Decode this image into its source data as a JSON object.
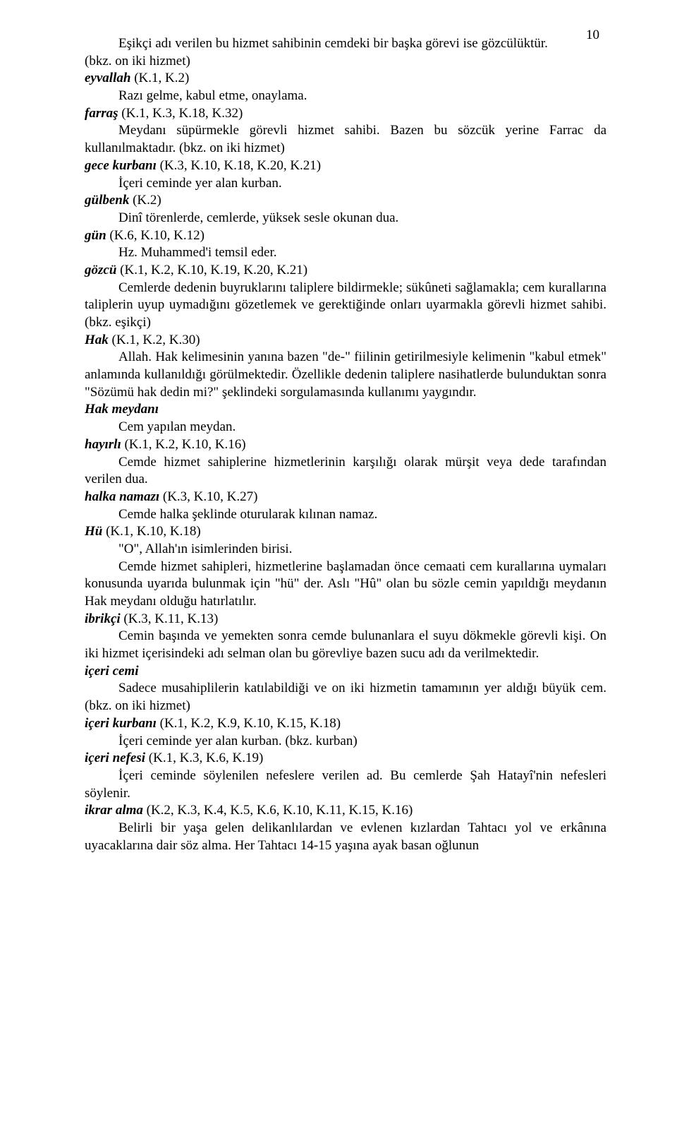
{
  "pageNumber": "10",
  "paragraphs": [
    {
      "indent": true,
      "justify": false,
      "segments": [
        {
          "text": "Eşikçi adı verilen bu hizmet sahibinin cemdeki bir başka görevi ise gözcülüktür."
        }
      ]
    },
    {
      "indent": false,
      "justify": false,
      "segments": [
        {
          "text": "(bkz. on iki hizmet)"
        }
      ]
    },
    {
      "indent": false,
      "justify": false,
      "segments": [
        {
          "text": " "
        }
      ]
    },
    {
      "indent": false,
      "justify": false,
      "segments": [
        {
          "term": true,
          "text": "eyvallah "
        },
        {
          "text": "(K.1, K.2)"
        }
      ]
    },
    {
      "indent": true,
      "justify": false,
      "segments": [
        {
          "text": "Razı gelme, kabul etme, onaylama."
        }
      ]
    },
    {
      "indent": false,
      "justify": false,
      "segments": [
        {
          "term": true,
          "text": "farraş "
        },
        {
          "text": "(K.1, K.3, K.18, K.32)"
        }
      ]
    },
    {
      "indent": true,
      "justify": true,
      "segments": [
        {
          "text": "Meydanı süpürmekle görevli hizmet sahibi. Bazen bu sözcük yerine Farrac da kullanılmaktadır. (bkz. on iki hizmet)"
        }
      ]
    },
    {
      "indent": false,
      "justify": false,
      "segments": [
        {
          "term": true,
          "text": "gece kurbanı "
        },
        {
          "text": "(K.3, K.10, K.18, K.20, K.21)"
        }
      ]
    },
    {
      "indent": true,
      "justify": false,
      "segments": [
        {
          "text": "İçeri ceminde yer alan kurban."
        }
      ]
    },
    {
      "indent": false,
      "justify": false,
      "segments": [
        {
          "term": true,
          "text": "gülbenk "
        },
        {
          "text": "(K.2)"
        }
      ]
    },
    {
      "indent": true,
      "justify": false,
      "segments": [
        {
          "text": "Dinî törenlerde, cemlerde, yüksek sesle okunan dua."
        }
      ]
    },
    {
      "indent": false,
      "justify": false,
      "segments": [
        {
          "term": true,
          "text": "gün "
        },
        {
          "text": "(K.6, K.10, K.12)"
        }
      ]
    },
    {
      "indent": true,
      "justify": false,
      "segments": [
        {
          "text": "Hz. Muhammed'i temsil eder."
        }
      ]
    },
    {
      "indent": false,
      "justify": false,
      "segments": [
        {
          "term": true,
          "text": "gözcü "
        },
        {
          "text": "(K.1, K.2, K.10, K.19, K.20, K.21)"
        }
      ]
    },
    {
      "indent": true,
      "justify": true,
      "segments": [
        {
          "text": "Cemlerde dedenin buyruklarını taliplere bildirmekle; sükûneti sağlamakla; cem kurallarına taliplerin uyup uymadığını gözetlemek ve gerektiğinde onları uyarmakla görevli hizmet sahibi. (bkz. eşikçi)"
        }
      ]
    },
    {
      "indent": false,
      "justify": false,
      "segments": [
        {
          "term": true,
          "text": "Hak "
        },
        {
          "text": "(K.1, K.2, K.30)"
        }
      ]
    },
    {
      "indent": true,
      "justify": true,
      "segments": [
        {
          "text": "Allah. Hak kelimesinin yanına bazen \"de-\" fiilinin getirilmesiyle kelimenin \"kabul etmek\" anlamında kullanıldığı görülmektedir. Özellikle dedenin taliplere nasihatlerde bulunduktan sonra \"Sözümü hak dedin mi?\" şeklindeki sorgulamasında kullanımı yaygındır."
        }
      ]
    },
    {
      "indent": false,
      "justify": false,
      "segments": [
        {
          "term": true,
          "text": "Hak meydanı"
        }
      ]
    },
    {
      "indent": true,
      "justify": false,
      "segments": [
        {
          "text": "Cem yapılan meydan."
        }
      ]
    },
    {
      "indent": false,
      "justify": false,
      "segments": [
        {
          "term": true,
          "text": "hayırlı "
        },
        {
          "text": "(K.1, K.2, K.10, K.16)"
        }
      ]
    },
    {
      "indent": true,
      "justify": true,
      "segments": [
        {
          "text": "Cemde hizmet sahiplerine hizmetlerinin karşılığı olarak mürşit veya dede tarafından verilen dua."
        }
      ]
    },
    {
      "indent": false,
      "justify": false,
      "segments": [
        {
          "term": true,
          "text": "halka namazı "
        },
        {
          "text": "(K.3, K.10, K.27)"
        }
      ]
    },
    {
      "indent": true,
      "justify": false,
      "segments": [
        {
          "text": "Cemde halka şeklinde oturularak kılınan namaz."
        }
      ]
    },
    {
      "indent": false,
      "justify": false,
      "segments": [
        {
          "term": true,
          "text": "Hü "
        },
        {
          "text": "(K.1, K.10, K.18)"
        }
      ]
    },
    {
      "indent": true,
      "justify": false,
      "segments": [
        {
          "text": "\"O\", Allah'ın isimlerinden birisi."
        }
      ]
    },
    {
      "indent": true,
      "justify": true,
      "segments": [
        {
          "text": "Cemde hizmet sahipleri, hizmetlerine başlamadan önce cemaati cem kurallarına uymaları konusunda uyarıda bulunmak için \"hü\" der. Aslı \"Hû\" olan bu sözle cemin yapıldığı meydanın Hak meydanı olduğu hatırlatılır."
        }
      ]
    },
    {
      "indent": false,
      "justify": false,
      "segments": [
        {
          "term": true,
          "text": "ibrikçi "
        },
        {
          "text": "(K.3, K.11, K.13)"
        }
      ]
    },
    {
      "indent": true,
      "justify": true,
      "segments": [
        {
          "text": "Cemin başında ve yemekten sonra cemde bulunanlara el suyu dökmekle görevli kişi. On iki hizmet içerisindeki adı selman olan bu görevliye bazen sucu adı da verilmektedir."
        }
      ]
    },
    {
      "indent": false,
      "justify": false,
      "segments": [
        {
          "term": true,
          "text": "içeri cemi"
        }
      ]
    },
    {
      "indent": true,
      "justify": true,
      "segments": [
        {
          "text": "Sadece musahiplilerin katılabildiği ve on iki hizmetin tamamının yer aldığı büyük cem. (bkz. on iki hizmet)"
        }
      ]
    },
    {
      "indent": false,
      "justify": false,
      "segments": [
        {
          "term": true,
          "text": "içeri kurbanı "
        },
        {
          "text": "(K.1, K.2, K.9, K.10, K.15, K.18)"
        }
      ]
    },
    {
      "indent": true,
      "justify": false,
      "segments": [
        {
          "text": "İçeri ceminde yer alan kurban. (bkz. kurban)"
        }
      ]
    },
    {
      "indent": false,
      "justify": false,
      "segments": [
        {
          "term": true,
          "text": "içeri nefesi "
        },
        {
          "text": "(K.1, K.3, K.6, K.19)"
        }
      ]
    },
    {
      "indent": true,
      "justify": true,
      "segments": [
        {
          "text": "İçeri ceminde söylenilen nefeslere verilen ad. Bu cemlerde Şah Hatayî'nin nefesleri söylenir."
        }
      ]
    },
    {
      "indent": false,
      "justify": false,
      "segments": [
        {
          "term": true,
          "text": "ikrar alma "
        },
        {
          "text": "(K.2, K.3, K.4, K.5, K.6, K.10, K.11, K.15, K.16)"
        }
      ]
    },
    {
      "indent": true,
      "justify": true,
      "segments": [
        {
          "text": "Belirli bir yaşa gelen delikanlılardan ve evlenen kızlardan Tahtacı yol ve erkânına uyacaklarına dair söz alma. Her Tahtacı 14-15 yaşına ayak basan oğlunun"
        }
      ]
    }
  ]
}
